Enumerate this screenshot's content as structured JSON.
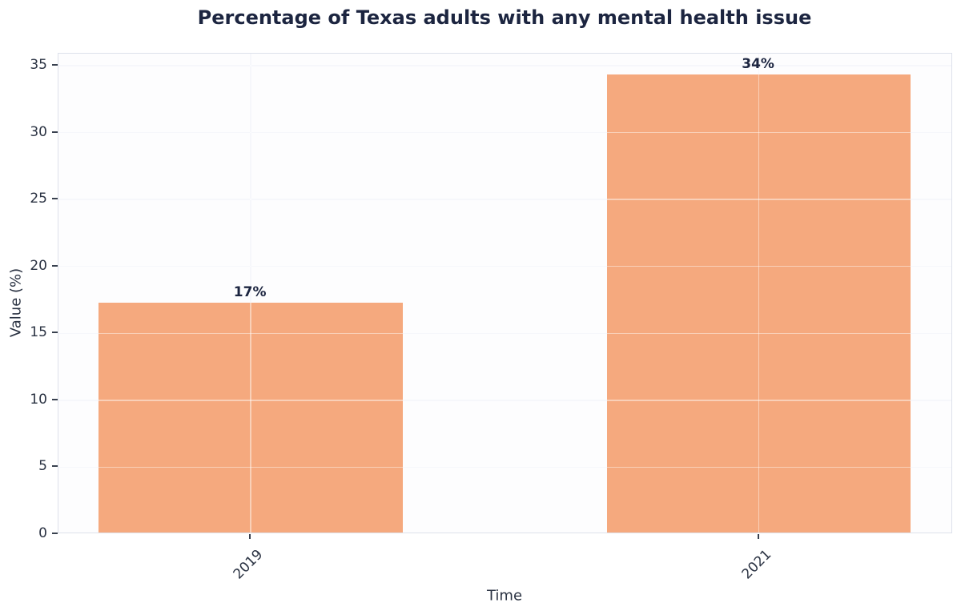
{
  "chart_data": {
    "type": "bar",
    "title": "Percentage of Texas adults with any mental health issue",
    "xlabel": "Time",
    "ylabel": "Value (%)",
    "categories": [
      "2019",
      "2021"
    ],
    "values": [
      17.2,
      34.2
    ],
    "bar_labels": [
      "17%",
      "34%"
    ],
    "yticks": [
      0,
      5,
      10,
      15,
      20,
      25,
      30,
      35
    ],
    "ylim": [
      0,
      35.9
    ],
    "grid": true,
    "legend_position": "none",
    "bar_color": "#f5a97e",
    "title_color": "#1c2540",
    "tick_text_color": "#2a3242",
    "spine_color": "#dde1eb",
    "gridline_color": "#eef1f7",
    "background_color": "#ffffff"
  }
}
